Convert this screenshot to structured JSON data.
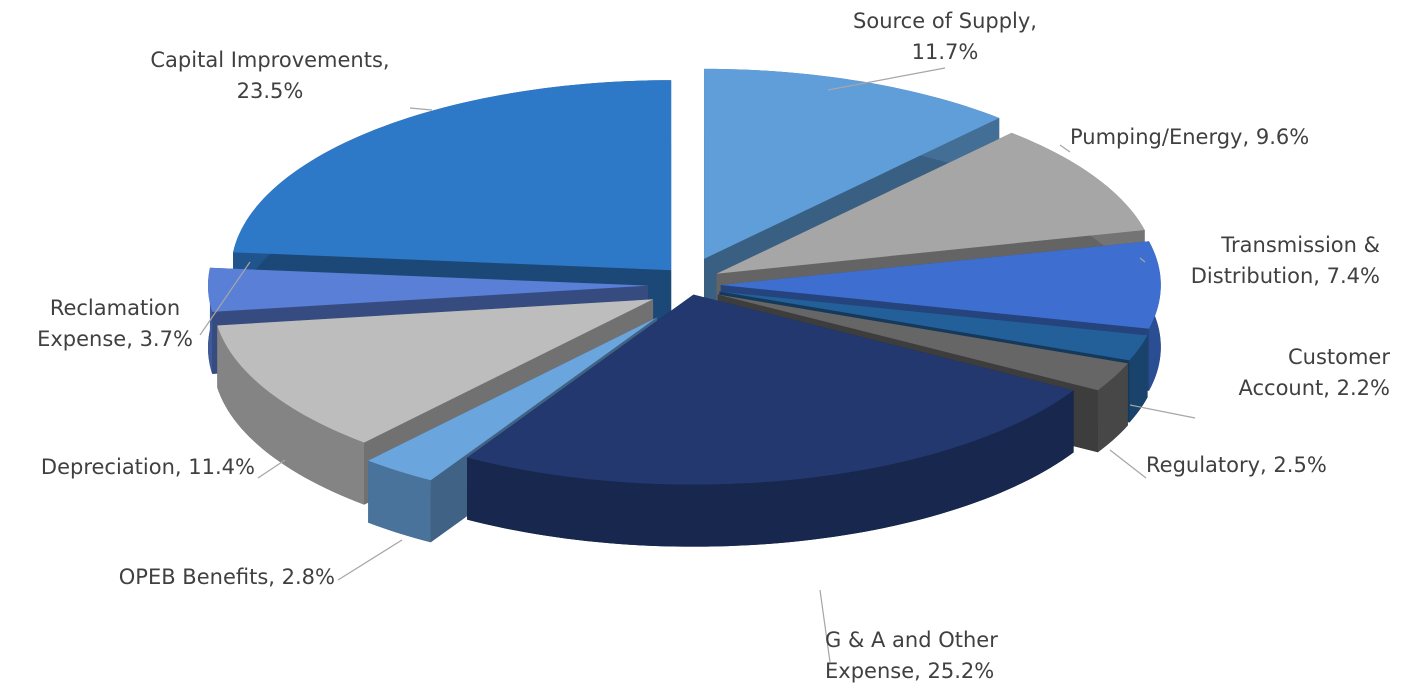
{
  "chart_data": {
    "type": "pie3d",
    "categories": [
      "Source of Supply,",
      "Pumping/Energy,",
      "Transmission & Distribution,",
      "Customer Account,",
      "Regulatory,",
      "G & A and Other Expense,",
      "OPEB Benefits,",
      "Depreciation,",
      "Reclamation Expense,",
      "Capital Improvements,"
    ],
    "values": [
      11.7,
      9.6,
      7.4,
      2.2,
      2.5,
      25.2,
      2.8,
      11.4,
      3.7,
      23.5
    ],
    "value_labels": [
      "11.7%",
      "9.6%",
      "7.4%",
      "2.2%",
      "2.5%",
      "25.2%",
      "2.8%",
      "11.4%",
      "3.7%",
      "23.5%"
    ],
    "colors": [
      "#5f9ed8",
      "#a6a6a6",
      "#3e6fd0",
      "#235f98",
      "#666666",
      "#22386e",
      "#6aa5de",
      "#bdbdbd",
      "#5a7fd6",
      "#2e78c8"
    ]
  }
}
